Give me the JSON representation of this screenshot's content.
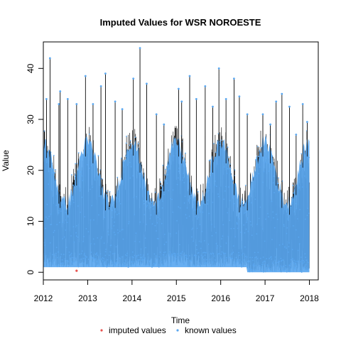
{
  "chart_data": {
    "type": "line",
    "title": "Imputed Values for  WSR NOROESTE",
    "xlabel": "Time",
    "ylabel": "Value",
    "xlim": [
      2012.0,
      2018.2
    ],
    "ylim": [
      -1.5,
      45.2
    ],
    "x_ticks": [
      2012,
      2013,
      2014,
      2015,
      2016,
      2017,
      2018
    ],
    "x_tick_labels": [
      "2012",
      "2013",
      "2014",
      "2015",
      "2016",
      "2017",
      "2018"
    ],
    "y_ticks": [
      0,
      10,
      20,
      30,
      40
    ],
    "y_tick_labels": [
      "0",
      "10",
      "20",
      "30",
      "40"
    ],
    "legend": {
      "placement": "bottom",
      "entries": [
        {
          "label": "imputed values",
          "color": "#e8534f"
        },
        {
          "label": "known values",
          "color": "#5aa7f0"
        }
      ]
    },
    "series": [
      {
        "name": "known values",
        "color": "#5aa7f0",
        "line_color": "#000000",
        "peaks": [
          {
            "x": 2012.07,
            "y": 34
          },
          {
            "x": 2012.15,
            "y": 42
          },
          {
            "x": 2012.35,
            "y": 33
          },
          {
            "x": 2012.38,
            "y": 35.5
          },
          {
            "x": 2012.55,
            "y": 34
          },
          {
            "x": 2012.75,
            "y": 33
          },
          {
            "x": 2012.95,
            "y": 38.5
          },
          {
            "x": 2013.12,
            "y": 33
          },
          {
            "x": 2013.3,
            "y": 36.5
          },
          {
            "x": 2013.4,
            "y": 39
          },
          {
            "x": 2013.62,
            "y": 33.5
          },
          {
            "x": 2013.78,
            "y": 32
          },
          {
            "x": 2014.03,
            "y": 38
          },
          {
            "x": 2014.18,
            "y": 44
          },
          {
            "x": 2014.33,
            "y": 37
          },
          {
            "x": 2014.55,
            "y": 31
          },
          {
            "x": 2014.72,
            "y": 29
          },
          {
            "x": 2015.05,
            "y": 36
          },
          {
            "x": 2015.12,
            "y": 33.5
          },
          {
            "x": 2015.3,
            "y": 38.5
          },
          {
            "x": 2015.45,
            "y": 34
          },
          {
            "x": 2015.65,
            "y": 36.5
          },
          {
            "x": 2015.82,
            "y": 32.5
          },
          {
            "x": 2015.96,
            "y": 40
          },
          {
            "x": 2016.12,
            "y": 34
          },
          {
            "x": 2016.3,
            "y": 38
          },
          {
            "x": 2016.42,
            "y": 34.5
          },
          {
            "x": 2016.6,
            "y": 31
          },
          {
            "x": 2016.95,
            "y": 31
          },
          {
            "x": 2017.12,
            "y": 29
          },
          {
            "x": 2017.25,
            "y": 33.5
          },
          {
            "x": 2017.38,
            "y": 35
          },
          {
            "x": 2017.55,
            "y": 32.5
          },
          {
            "x": 2017.7,
            "y": 27
          },
          {
            "x": 2017.85,
            "y": 33
          },
          {
            "x": 2017.95,
            "y": 29.5
          }
        ]
      },
      {
        "name": "imputed values",
        "color": "#e8534f",
        "points": [
          {
            "x": 2012.75,
            "y": 0.3
          }
        ]
      }
    ],
    "baseline_known": 1,
    "baseline_known_2017": 0,
    "grid": false
  }
}
